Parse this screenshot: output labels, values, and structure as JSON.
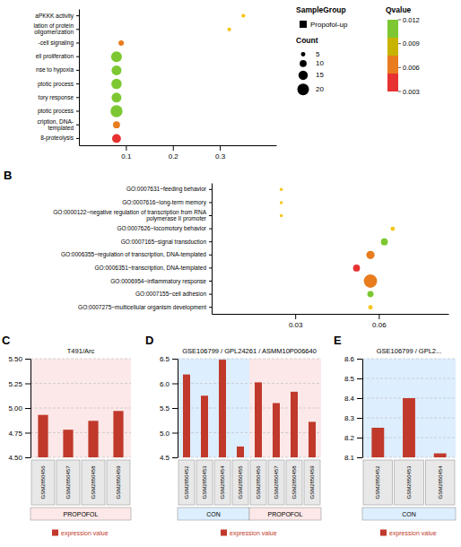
{
  "chart_data": [
    {
      "type": "dot",
      "orientation": "horizontal",
      "categories": [
        "aPKKK activity",
        "lation of protein\noligomerization",
        "-cell signaling",
        "ell proliferation",
        "nse to hypoxia",
        "ptotic process",
        "tory response",
        "ptotic process",
        "cription, DNA-\ntemplated",
        "8-proteolysis"
      ],
      "values": [
        0.35,
        0.32,
        0.09,
        0.08,
        0.08,
        0.08,
        0.08,
        0.08,
        0.08,
        0.08
      ],
      "sizes": [
        15,
        15,
        30,
        120,
        100,
        110,
        100,
        150,
        50,
        80
      ],
      "colors": [
        "#f5c518",
        "#f5c518",
        "#e87c1e",
        "#7dc832",
        "#7dc832",
        "#7dc832",
        "#7dc832",
        "#7dc832",
        "#e87c1e",
        "#e83232"
      ],
      "xlim": [
        0.0,
        0.42
      ],
      "xticks": [
        0.1,
        0.2,
        0.3
      ]
    },
    {
      "type": "legend",
      "sections": [
        {
          "title": "SampleGroup",
          "categories": [
            "Propofol-up"
          ],
          "marker": "square",
          "color": "black"
        },
        {
          "title": "Count",
          "values": [
            5,
            10,
            15,
            20
          ],
          "sizes": [
            20,
            50,
            90,
            140
          ],
          "color": "black"
        },
        {
          "title": "Qvalue",
          "colors": [
            "#e83232",
            "#e87c1e",
            "#c8b400",
            "#7dc832"
          ],
          "ticks": [
            0.012,
            0.009,
            0.006,
            0.003
          ]
        }
      ]
    },
    {
      "type": "dot",
      "orientation": "horizontal",
      "annotations": [
        "B"
      ],
      "categories": [
        "GO:0007631~feeding behavior",
        "GO:0007616~long-term memory",
        "GO:0000122~negative regulation of transcription from RNA\npolymerase II promoter",
        "GO:0007626~locomotory behavior",
        "GO:0007165~signal transduction",
        "GO:0006355~regulation of transcription, DNA-templated",
        "GO:0006351~transcription, DNA-templated",
        "GO:0006954~inflammatory response",
        "GO:0007155~cell adhesion",
        "GO:0007275~multicellular organism development"
      ],
      "values": [
        0.025,
        0.025,
        0.025,
        0.065,
        0.062,
        0.057,
        0.052,
        0.057,
        0.057,
        0.057
      ],
      "sizes": [
        10,
        10,
        10,
        20,
        50,
        70,
        50,
        180,
        40,
        20
      ],
      "colors": [
        "#f5c518",
        "#f5c518",
        "#f5c518",
        "#f5c518",
        "#7dc832",
        "#e87c1e",
        "#e83232",
        "#e87c1e",
        "#7dc832",
        "#f5c518"
      ],
      "xlim": [
        0.0,
        0.085
      ],
      "xticks": [
        0.03,
        0.06
      ]
    },
    {
      "type": "bar",
      "title": "T491/Arc",
      "annotations": [
        "C"
      ],
      "categories": [
        "GSM2850456",
        "GSM2850457",
        "GSM2850458",
        "GSM2850459"
      ],
      "series": [
        {
          "name": "expression value",
          "color": "#c0392b",
          "marker": "square",
          "values": [
            4.93,
            4.78,
            4.87,
            4.97
          ]
        }
      ],
      "groups": [
        {
          "name": "PROPOFOL",
          "color": "#fce8e8",
          "categories": [
            "GSM2850456",
            "GSM2850457",
            "GSM2850458",
            "GSM2850459"
          ]
        }
      ],
      "ylim": [
        4.5,
        5.5
      ],
      "yticks": [
        {
          "value": 4.5,
          "label": "4.50"
        },
        4.75,
        {
          "value": 5,
          "label": "5.00"
        },
        5.25,
        {
          "value": 5.5,
          "label": "5.50"
        }
      ],
      "grid": true
    },
    {
      "type": "bar",
      "title": "GSE106799 / GPL24261 / ASMM10P006640",
      "annotations": [
        "D"
      ],
      "categories": [
        "GSM2850452",
        "GSM2850453",
        "GSM2850454",
        "GSM2850455",
        "GSM2850456",
        "GSM2850457",
        "GSM2850458",
        "GSM2850459"
      ],
      "series": [
        {
          "name": "expression value",
          "color": "#c0392b",
          "marker": "square",
          "values": [
            6.18,
            5.75,
            6.48,
            4.72,
            6.02,
            5.6,
            5.83,
            5.22
          ]
        }
      ],
      "groups": [
        {
          "name": "CON",
          "color": "#ddeeff",
          "categories": [
            "GSM2850452",
            "GSM2850453",
            "GSM2850454",
            "GSM2850455"
          ]
        },
        {
          "name": "PROPOFOL",
          "color": "#fce8e8",
          "categories": [
            "GSM2850456",
            "GSM2850457",
            "GSM2850458",
            "GSM2850459"
          ]
        }
      ],
      "ylim": [
        4.5,
        6.5
      ],
      "yticks": [
        4.5,
        {
          "value": 5,
          "label": "5.0"
        },
        5.5,
        {
          "value": 6,
          "label": "6.0"
        },
        6.5
      ],
      "grid": true
    },
    {
      "type": "bar",
      "title": "GSE106799 / GPL2...",
      "annotations": [
        "E"
      ],
      "categories": [
        "GSM2850452",
        "GSM2850453",
        "GSM2850454"
      ],
      "series": [
        {
          "name": "expression value",
          "color": "#c0392b",
          "marker": "square",
          "values": [
            8.25,
            8.4,
            8.12
          ]
        }
      ],
      "groups": [
        {
          "name": "CON",
          "color": "#ddeeff",
          "categories": [
            "GSM2850452",
            "GSM2850453",
            "GSM2850454"
          ]
        }
      ],
      "ylim": [
        8.1,
        8.6
      ],
      "yticks": [
        8.1,
        8.2,
        8.3,
        8.4,
        8.5,
        8.6
      ],
      "grid": true
    }
  ]
}
